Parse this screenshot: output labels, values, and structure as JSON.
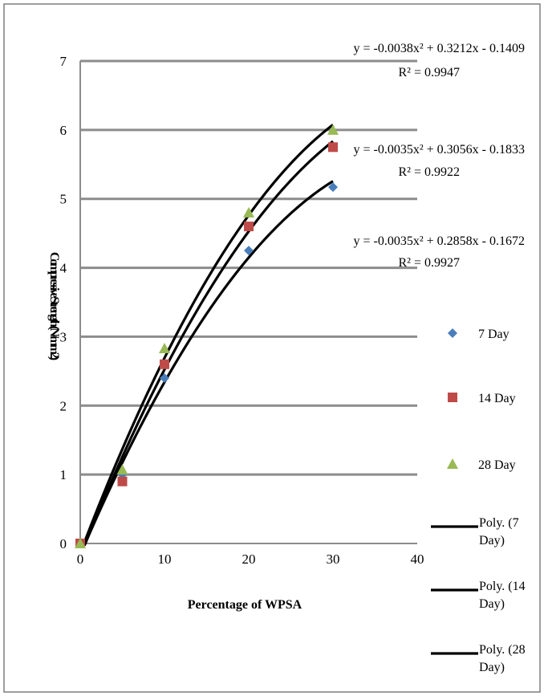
{
  "chart_data": {
    "type": "scatter",
    "title": "",
    "xlabel": "Percentage of WPSA",
    "ylabel": "Compressive Strength (N/mm2)",
    "xlim": [
      0,
      40
    ],
    "ylim": [
      0,
      7
    ],
    "x_ticks": [
      0,
      10,
      20,
      30,
      40
    ],
    "y_ticks": [
      0,
      1,
      2,
      3,
      4,
      5,
      6,
      7
    ],
    "grid": "horizontal",
    "legend_position": "right",
    "series": [
      {
        "name": "7 Day",
        "marker": "diamond",
        "color": "#4a7ebb",
        "points": [
          [
            0,
            0
          ],
          [
            5,
            1.0
          ],
          [
            10,
            2.4
          ],
          [
            20,
            4.25
          ],
          [
            30,
            5.17
          ]
        ],
        "trendline": {
          "name": "Poly. (7 Day)",
          "coefficients": [
            -0.0035,
            0.2858,
            -0.1672
          ],
          "equation": "y = -0.0035x² + 0.2858x - 0.1672",
          "r2": "R² = 0.9927"
        }
      },
      {
        "name": "14 Day",
        "marker": "square",
        "color": "#be4b48",
        "points": [
          [
            0,
            0
          ],
          [
            5,
            0.9
          ],
          [
            10,
            2.6
          ],
          [
            20,
            4.6
          ],
          [
            30,
            5.75
          ]
        ],
        "trendline": {
          "name": "Poly. (14 Day)",
          "coefficients": [
            -0.0035,
            0.3056,
            -0.1833
          ],
          "equation": "y = -0.0035x² + 0.3056x - 0.1833",
          "r2": "R² = 0.9922"
        }
      },
      {
        "name": "28 Day",
        "marker": "triangle",
        "color": "#98b954",
        "points": [
          [
            0,
            0
          ],
          [
            5,
            1.07
          ],
          [
            10,
            2.83
          ],
          [
            20,
            4.8
          ],
          [
            30,
            6.0
          ]
        ],
        "trendline": {
          "name": "Poly. (28 Day)",
          "coefficients": [
            -0.0038,
            0.3212,
            -0.1409
          ],
          "equation": "y = -0.0038x² + 0.3212x - 0.1409",
          "r2": "R² = 0.9947"
        }
      }
    ]
  }
}
